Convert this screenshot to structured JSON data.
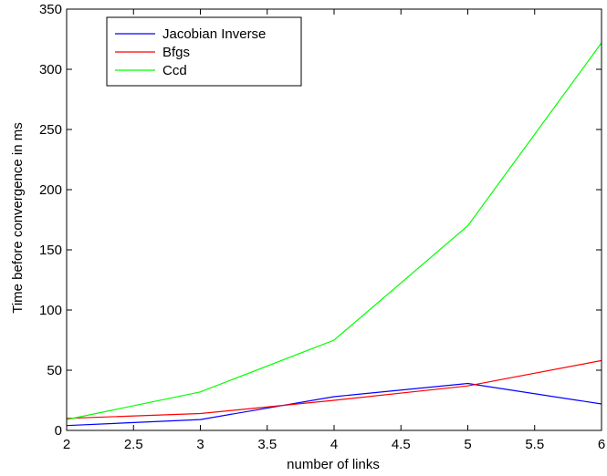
{
  "chart_data": {
    "type": "line",
    "title": "",
    "xlabel": "number of links",
    "ylabel": "Time before convergence in ms",
    "x": [
      2,
      3,
      4,
      5,
      6
    ],
    "xlim": [
      2,
      6
    ],
    "ylim": [
      0,
      350
    ],
    "xticks": [
      2,
      2.5,
      3,
      3.5,
      4,
      4.5,
      5,
      5.5,
      6
    ],
    "yticks": [
      0,
      50,
      100,
      150,
      200,
      250,
      300,
      350
    ],
    "grid": false,
    "legend_position": "top-left",
    "series": [
      {
        "name": "Jacobian Inverse",
        "color": "#0000ff",
        "values": [
          4,
          9,
          28,
          39,
          22
        ]
      },
      {
        "name": "Bfgs",
        "color": "#ff0000",
        "values": [
          10,
          14,
          25,
          37,
          58
        ]
      },
      {
        "name": "Ccd",
        "color": "#00ff00",
        "values": [
          9,
          32,
          75,
          170,
          322
        ]
      }
    ]
  }
}
